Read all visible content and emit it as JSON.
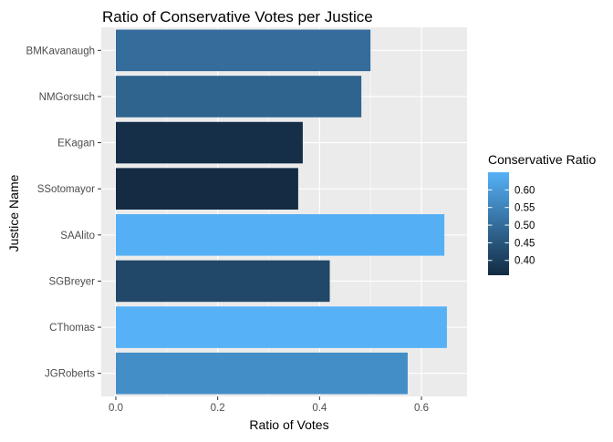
{
  "chart_data": {
    "type": "bar",
    "orientation": "horizontal",
    "title": "Ratio of Conservative Votes per Justice",
    "xlabel": "Ratio of Votes",
    "ylabel": "Justice Name",
    "xlim": [
      0,
      0.68
    ],
    "xticks": [
      0,
      0.2,
      0.4,
      0.6
    ],
    "xtick_labels": [
      "0.0",
      "0.2",
      "0.4",
      "0.6"
    ],
    "categories": [
      "JGRoberts",
      "CThomas",
      "SGBreyer",
      "SAAlito",
      "SSotomayor",
      "EKagan",
      "NMGorsuch",
      "BMKavanaugh"
    ],
    "values": [
      0.573,
      0.65,
      0.42,
      0.645,
      0.358,
      0.367,
      0.482,
      0.5
    ],
    "grid": true,
    "legend": {
      "title": "Conservative Ratio",
      "placement": "right",
      "ticks": [
        0.4,
        0.45,
        0.5,
        0.55,
        0.6
      ],
      "tick_labels": [
        "0.40",
        "0.45",
        "0.50",
        "0.55",
        "0.60"
      ],
      "range": [
        0.358,
        0.65
      ],
      "color_low": "#132B43",
      "color_high": "#56B1F7"
    },
    "panel_background": "#EBEBEB",
    "grid_color": "#FFFFFF"
  }
}
